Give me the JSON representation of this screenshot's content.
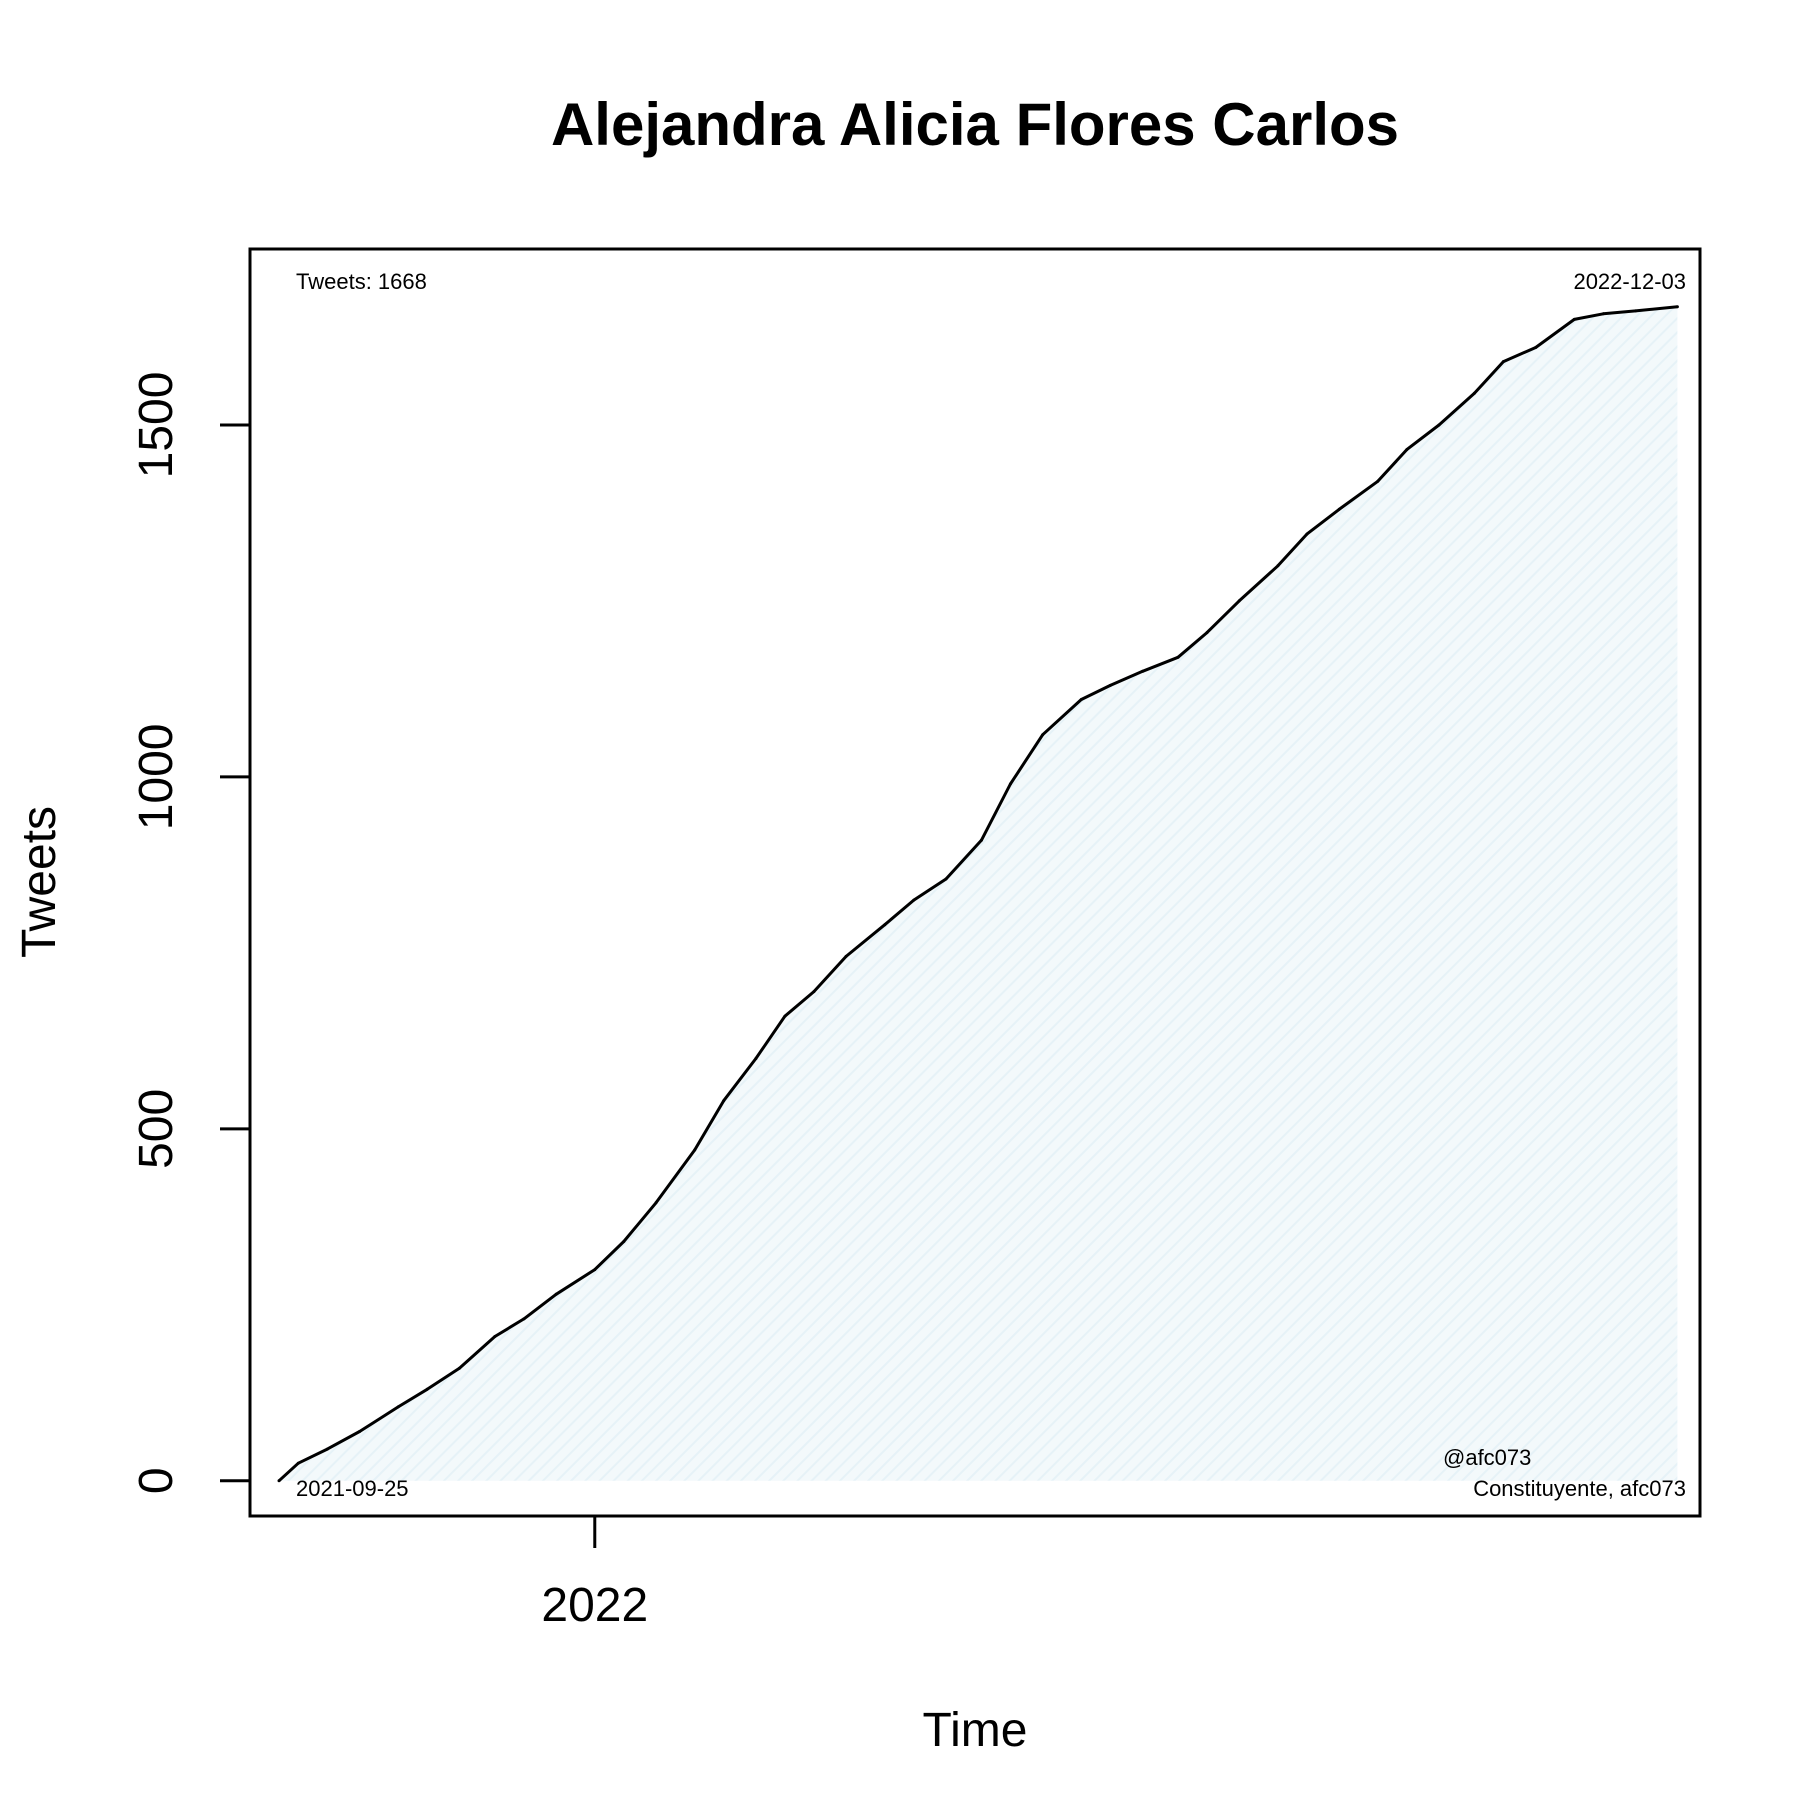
{
  "chart_data": {
    "type": "line",
    "title": "Alejandra Alicia Flores Carlos",
    "xlabel": "Time",
    "ylabel": "Tweets",
    "x_ticks": [
      {
        "label": "2022",
        "date": "2022-01-01"
      }
    ],
    "y_ticks": [
      0,
      500,
      1000,
      1500
    ],
    "xlim": [
      "2021-09-16",
      "2022-12-10"
    ],
    "ylim": [
      -50,
      1750
    ],
    "fill_color": "#e6f2f7",
    "line_color": "#000000",
    "annotations": {
      "tweet_count": "Tweets: 1668",
      "end_date": "2022-12-03",
      "start_date": "2021-09-25",
      "handle": "@afc073",
      "description": "Constituyente, afc073"
    },
    "series": [
      {
        "points": [
          [
            "2021-09-25",
            0
          ],
          [
            "2021-10-01",
            25
          ],
          [
            "2021-10-10",
            45
          ],
          [
            "2021-10-20",
            70
          ],
          [
            "2021-11-01",
            105
          ],
          [
            "2021-11-10",
            130
          ],
          [
            "2021-11-20",
            160
          ],
          [
            "2021-12-01",
            205
          ],
          [
            "2021-12-10",
            230
          ],
          [
            "2021-12-20",
            265
          ],
          [
            "2022-01-01",
            300
          ],
          [
            "2022-01-10",
            340
          ],
          [
            "2022-01-20",
            395
          ],
          [
            "2022-02-01",
            470
          ],
          [
            "2022-02-10",
            540
          ],
          [
            "2022-02-20",
            600
          ],
          [
            "2022-03-01",
            660
          ],
          [
            "2022-03-10",
            695
          ],
          [
            "2022-03-20",
            745
          ],
          [
            "2022-04-01",
            790
          ],
          [
            "2022-04-10",
            825
          ],
          [
            "2022-04-20",
            855
          ],
          [
            "2022-05-01",
            910
          ],
          [
            "2022-05-10",
            990
          ],
          [
            "2022-05-20",
            1060
          ],
          [
            "2022-06-01",
            1110
          ],
          [
            "2022-06-10",
            1130
          ],
          [
            "2022-06-20",
            1150
          ],
          [
            "2022-07-01",
            1170
          ],
          [
            "2022-07-10",
            1205
          ],
          [
            "2022-07-20",
            1250
          ],
          [
            "2022-08-01",
            1300
          ],
          [
            "2022-08-10",
            1345
          ],
          [
            "2022-08-20",
            1380
          ],
          [
            "2022-09-01",
            1420
          ],
          [
            "2022-09-10",
            1465
          ],
          [
            "2022-09-20",
            1500
          ],
          [
            "2022-10-01",
            1545
          ],
          [
            "2022-10-10",
            1590
          ],
          [
            "2022-10-20",
            1610
          ],
          [
            "2022-11-01",
            1650
          ],
          [
            "2022-11-10",
            1658
          ],
          [
            "2022-11-20",
            1662
          ],
          [
            "2022-12-03",
            1668
          ]
        ]
      }
    ]
  }
}
